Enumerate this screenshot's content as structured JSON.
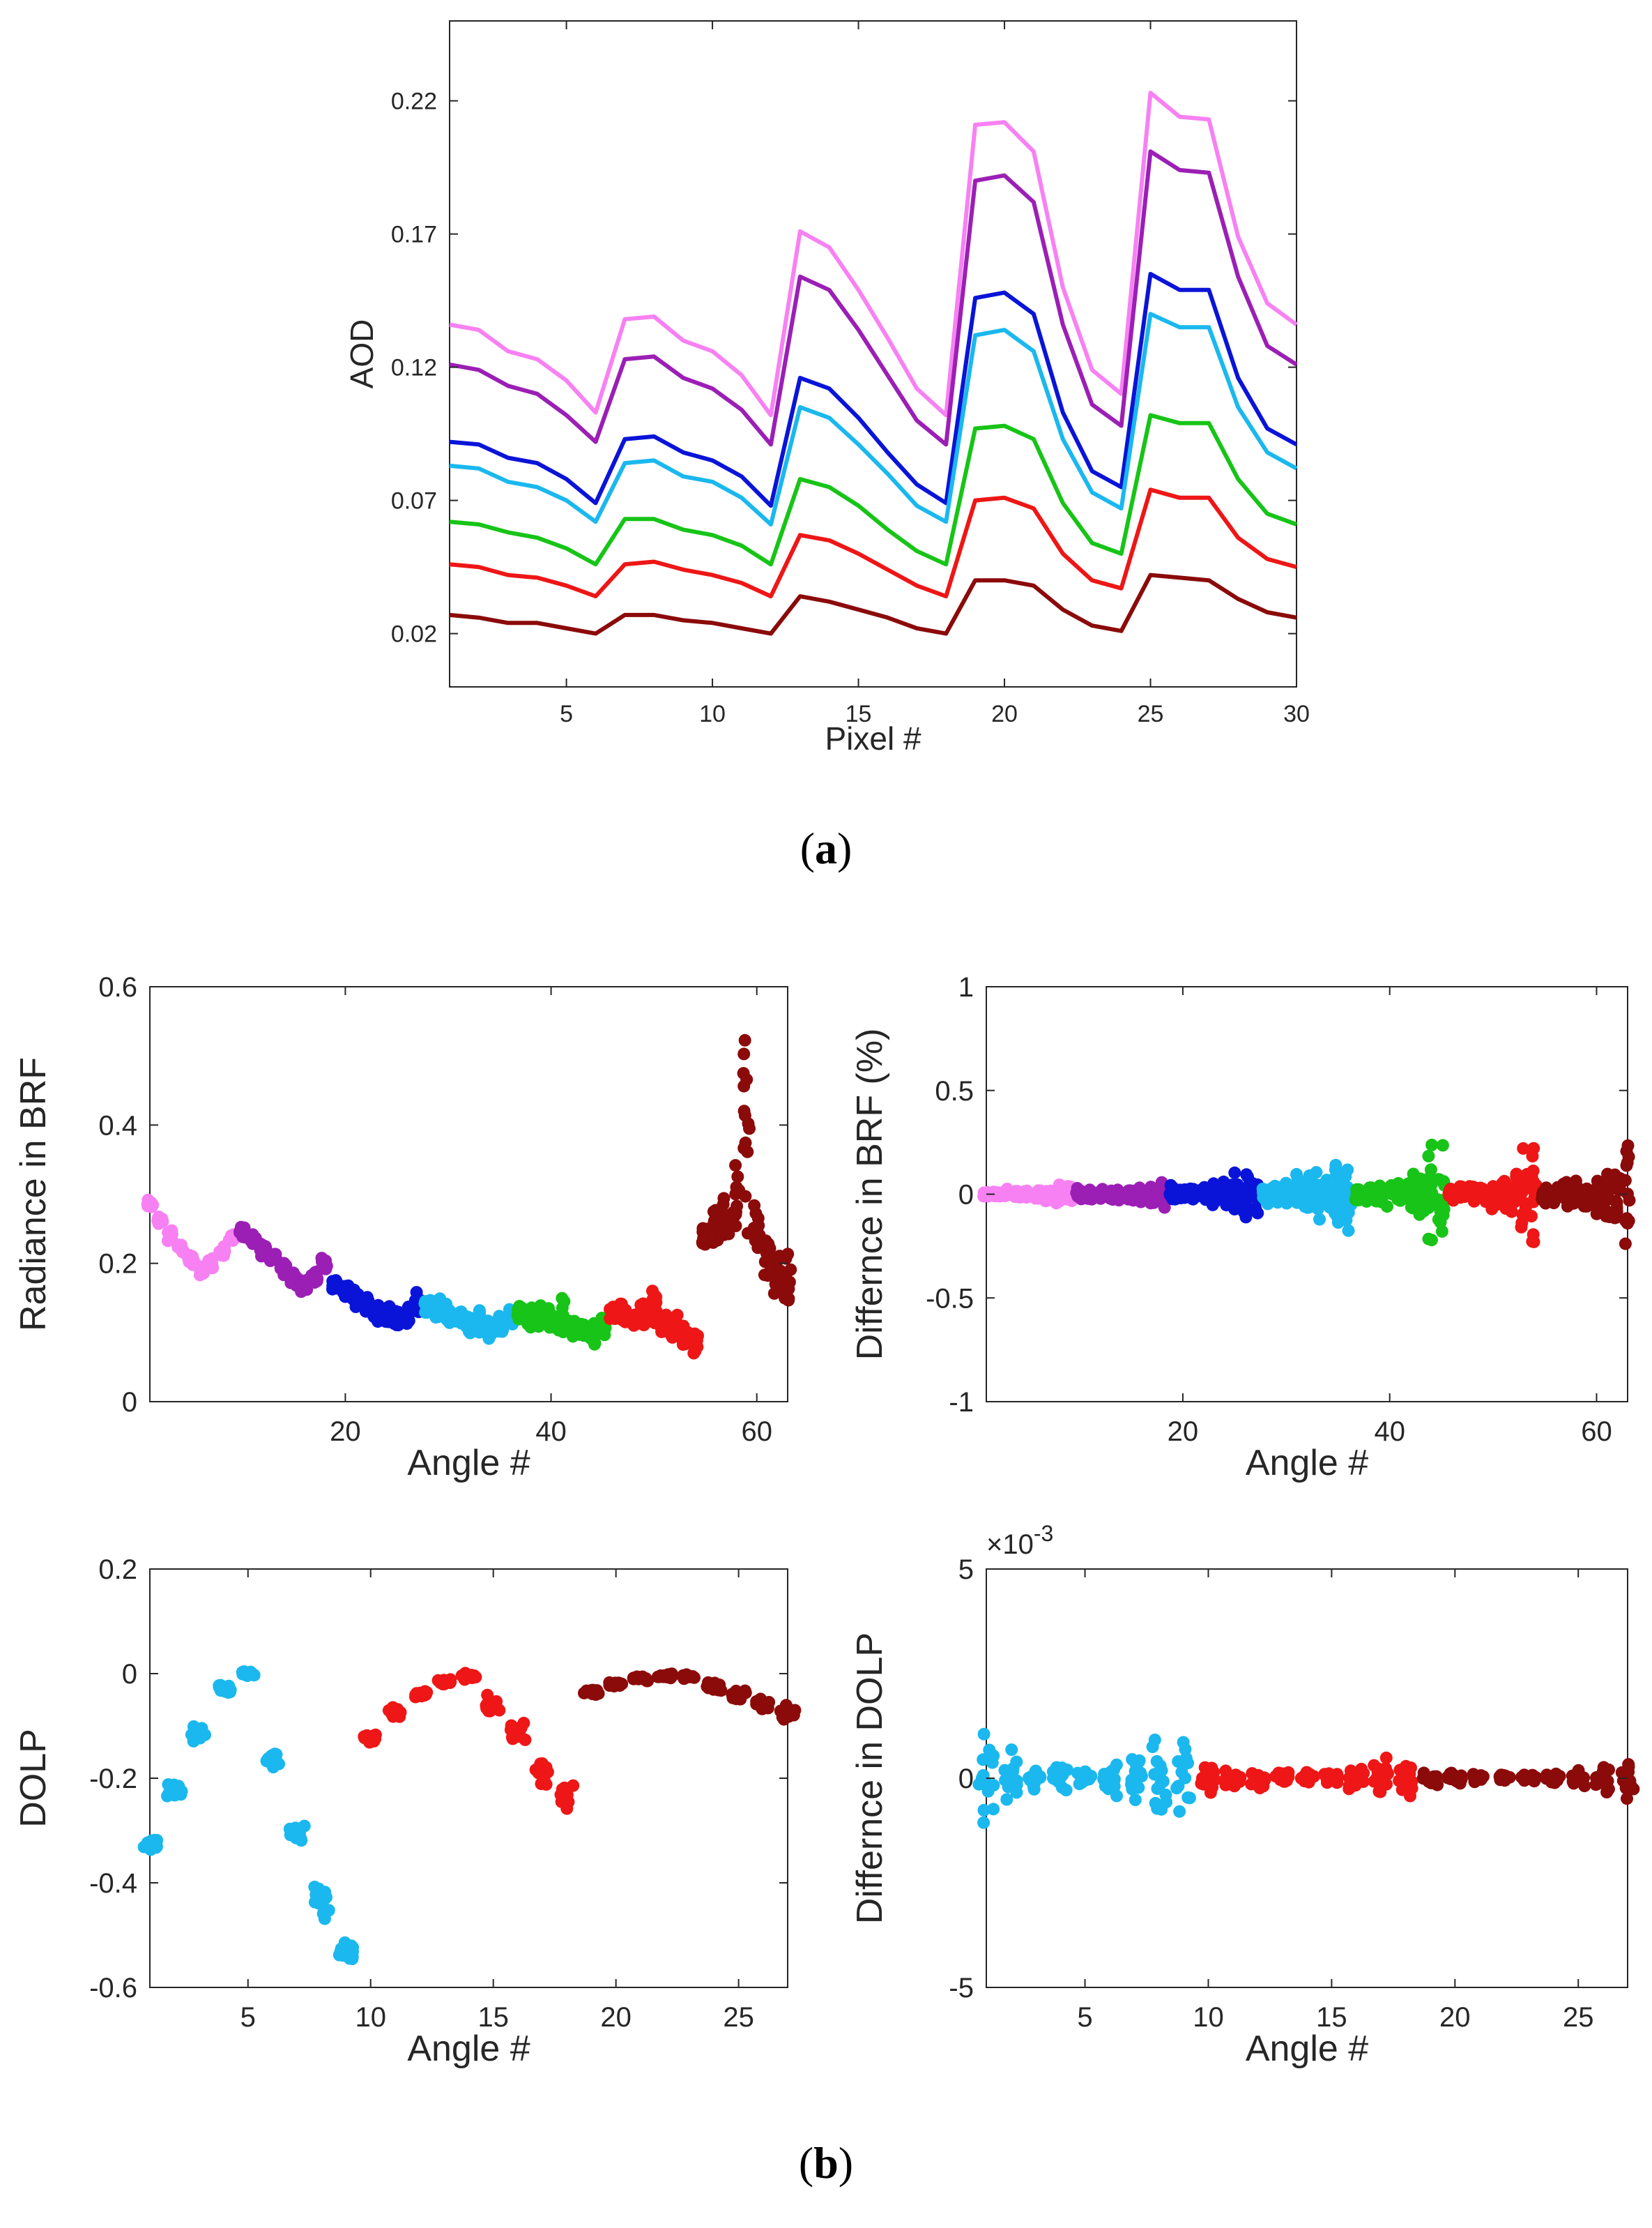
{
  "figure": {
    "label_a": "a",
    "label_b": "b",
    "paren_open": "(",
    "paren_close": ")"
  },
  "chart_data": [
    {
      "id": "aod",
      "type": "line",
      "title": "",
      "xlabel": "Pixel #",
      "ylabel": "AOD",
      "xlim": [
        1,
        30
      ],
      "ylim": [
        0.0,
        0.25
      ],
      "xticks": [
        5,
        10,
        15,
        20,
        25,
        30
      ],
      "yticks": [
        0.02,
        0.07,
        0.12,
        0.17,
        0.22
      ],
      "ytick_labels": [
        "0.02",
        "0.07",
        "0.12",
        "0.17",
        "0.22"
      ],
      "x": [
        1,
        2,
        3,
        4,
        5,
        6,
        7,
        8,
        9,
        10,
        11,
        12,
        13,
        14,
        15,
        16,
        17,
        18,
        19,
        20,
        21,
        22,
        23,
        24,
        25,
        26,
        27,
        28,
        29,
        30
      ],
      "series": [
        {
          "name": "violet",
          "color": "#f781f3",
          "values": [
            0.136,
            0.134,
            0.126,
            0.123,
            0.115,
            0.103,
            0.138,
            0.139,
            0.13,
            0.126,
            0.117,
            0.102,
            0.171,
            0.165,
            0.149,
            0.131,
            0.112,
            0.102,
            0.211,
            0.212,
            0.201,
            0.15,
            0.119,
            0.11,
            0.223,
            0.214,
            0.213,
            0.169,
            0.144,
            0.136
          ]
        },
        {
          "name": "purple",
          "color": "#9b1fb5",
          "values": [
            0.121,
            0.119,
            0.113,
            0.11,
            0.102,
            0.092,
            0.123,
            0.124,
            0.116,
            0.112,
            0.104,
            0.091,
            0.154,
            0.149,
            0.134,
            0.117,
            0.1,
            0.091,
            0.19,
            0.192,
            0.182,
            0.136,
            0.106,
            0.098,
            0.201,
            0.194,
            0.193,
            0.154,
            0.128,
            0.121
          ]
        },
        {
          "name": "blue",
          "color": "#0a14d8",
          "values": [
            0.092,
            0.091,
            0.086,
            0.084,
            0.078,
            0.069,
            0.093,
            0.094,
            0.088,
            0.085,
            0.079,
            0.068,
            0.116,
            0.112,
            0.101,
            0.088,
            0.076,
            0.069,
            0.146,
            0.148,
            0.14,
            0.103,
            0.081,
            0.075,
            0.155,
            0.149,
            0.149,
            0.116,
            0.097,
            0.091
          ]
        },
        {
          "name": "cyan",
          "color": "#1ab8ee",
          "values": [
            0.083,
            0.082,
            0.077,
            0.075,
            0.07,
            0.062,
            0.084,
            0.085,
            0.079,
            0.077,
            0.071,
            0.061,
            0.105,
            0.101,
            0.091,
            0.08,
            0.068,
            0.062,
            0.132,
            0.134,
            0.126,
            0.093,
            0.073,
            0.067,
            0.14,
            0.135,
            0.135,
            0.105,
            0.088,
            0.082
          ]
        },
        {
          "name": "green",
          "color": "#17c417",
          "values": [
            0.062,
            0.061,
            0.058,
            0.056,
            0.052,
            0.046,
            0.063,
            0.063,
            0.059,
            0.057,
            0.053,
            0.046,
            0.078,
            0.075,
            0.068,
            0.059,
            0.051,
            0.046,
            0.097,
            0.098,
            0.093,
            0.069,
            0.054,
            0.05,
            0.102,
            0.099,
            0.099,
            0.078,
            0.065,
            0.061
          ]
        },
        {
          "name": "red",
          "color": "#ee1616",
          "values": [
            0.046,
            0.045,
            0.042,
            0.041,
            0.038,
            0.034,
            0.046,
            0.047,
            0.044,
            0.042,
            0.039,
            0.034,
            0.057,
            0.055,
            0.05,
            0.044,
            0.038,
            0.034,
            0.07,
            0.071,
            0.067,
            0.05,
            0.04,
            0.037,
            0.074,
            0.071,
            0.071,
            0.056,
            0.048,
            0.045
          ]
        },
        {
          "name": "darkred",
          "color": "#8b0a0a",
          "values": [
            0.027,
            0.026,
            0.024,
            0.024,
            0.022,
            0.02,
            0.027,
            0.027,
            0.025,
            0.024,
            0.022,
            0.02,
            0.034,
            0.032,
            0.029,
            0.026,
            0.022,
            0.02,
            0.04,
            0.04,
            0.038,
            0.029,
            0.023,
            0.021,
            0.042,
            0.041,
            0.04,
            0.033,
            0.028,
            0.026
          ]
        }
      ]
    },
    {
      "id": "radiance",
      "type": "scatter",
      "title": "",
      "xlabel": "Angle #",
      "ylabel": "Radiance in BRF",
      "xlim": [
        1,
        63
      ],
      "ylim": [
        0,
        0.6
      ],
      "xticks": [
        20,
        40,
        60
      ],
      "yticks": [
        0,
        0.2,
        0.4,
        0.6
      ],
      "ytick_labels": [
        "0",
        "0.2",
        "0.4",
        "0.6"
      ],
      "series": [
        {
          "name": "violet",
          "color": "#f781f3",
          "x_range": [
            1,
            9
          ],
          "centers": [
            0.285,
            0.262,
            0.24,
            0.222,
            0.205,
            0.19,
            0.2,
            0.218,
            0.238
          ],
          "spread": [
            0.01,
            0.01,
            0.01,
            0.01,
            0.01,
            0.01,
            0.01,
            0.01,
            0.01
          ]
        },
        {
          "name": "purple",
          "color": "#9b1fb5",
          "x_range": [
            10,
            18
          ],
          "centers": [
            0.245,
            0.232,
            0.22,
            0.208,
            0.195,
            0.18,
            0.17,
            0.178,
            0.2
          ],
          "spread": [
            0.012,
            0.012,
            0.012,
            0.012,
            0.014,
            0.016,
            0.016,
            0.016,
            0.014
          ]
        },
        {
          "name": "blue",
          "color": "#0a14d8",
          "x_range": [
            19,
            27
          ],
          "centers": [
            0.17,
            0.16,
            0.15,
            0.14,
            0.132,
            0.125,
            0.118,
            0.125,
            0.145
          ],
          "spread": [
            0.012,
            0.015,
            0.015,
            0.018,
            0.02,
            0.02,
            0.02,
            0.02,
            0.02
          ]
        },
        {
          "name": "cyan",
          "color": "#1ab8ee",
          "x_range": [
            28,
            36
          ],
          "centers": [
            0.14,
            0.135,
            0.128,
            0.122,
            0.115,
            0.11,
            0.102,
            0.11,
            0.125
          ],
          "spread": [
            0.015,
            0.018,
            0.02,
            0.02,
            0.022,
            0.028,
            0.02,
            0.02,
            0.018
          ]
        },
        {
          "name": "green",
          "color": "#17c417",
          "x_range": [
            37,
            45
          ],
          "centers": [
            0.125,
            0.122,
            0.12,
            0.118,
            0.122,
            0.108,
            0.1,
            0.095,
            0.11
          ],
          "spread": [
            0.018,
            0.02,
            0.022,
            0.026,
            0.045,
            0.022,
            0.022,
            0.024,
            0.025
          ]
        },
        {
          "name": "red",
          "color": "#ee1616",
          "x_range": [
            46,
            54
          ],
          "centers": [
            0.125,
            0.125,
            0.12,
            0.122,
            0.13,
            0.115,
            0.105,
            0.095,
            0.085
          ],
          "spread": [
            0.018,
            0.022,
            0.025,
            0.03,
            0.045,
            0.03,
            0.03,
            0.03,
            0.025
          ]
        },
        {
          "name": "darkred",
          "color": "#8b0a0a",
          "x_range": [
            55,
            63
          ],
          "centers": [
            0.24,
            0.255,
            0.265,
            0.29,
            0.38,
            0.25,
            0.21,
            0.185,
            0.17
          ],
          "spread": [
            0.03,
            0.04,
            0.06,
            0.08,
            0.2,
            0.06,
            0.05,
            0.05,
            0.05
          ]
        }
      ]
    },
    {
      "id": "brf_diff",
      "type": "scatter",
      "title": "",
      "xlabel": "Angle #",
      "ylabel": "Differnce in BRF (%)",
      "xlim": [
        1,
        63
      ],
      "ylim": [
        -1,
        1
      ],
      "xticks": [
        20,
        40,
        60
      ],
      "yticks": [
        -1,
        -0.5,
        0,
        0.5,
        1
      ],
      "ytick_labels": [
        "-1",
        "-0.5",
        "0",
        "0.5",
        "1"
      ],
      "series": [
        {
          "name": "violet",
          "color": "#f781f3",
          "x_range": [
            1,
            9
          ],
          "centers": [
            0,
            0,
            0,
            0,
            0,
            0,
            0,
            0,
            0
          ],
          "spread": [
            0.03,
            0.03,
            0.03,
            0.03,
            0.03,
            0.04,
            0.05,
            0.06,
            0.06
          ]
        },
        {
          "name": "purple",
          "color": "#9b1fb5",
          "x_range": [
            10,
            18
          ],
          "centers": [
            0,
            0,
            0,
            0,
            0,
            0,
            0,
            0,
            0
          ],
          "spread": [
            0.04,
            0.04,
            0.04,
            0.04,
            0.05,
            0.06,
            0.07,
            0.08,
            0.09
          ]
        },
        {
          "name": "blue",
          "color": "#0a14d8",
          "x_range": [
            19,
            27
          ],
          "centers": [
            0,
            0,
            0,
            0,
            0,
            0,
            0,
            0,
            0
          ],
          "spread": [
            0.06,
            0.06,
            0.06,
            0.06,
            0.08,
            0.1,
            0.14,
            0.2,
            0.2
          ]
        },
        {
          "name": "cyan",
          "color": "#1ab8ee",
          "x_range": [
            28,
            36
          ],
          "centers": [
            0,
            0,
            0,
            0,
            0,
            0,
            0,
            0,
            0
          ],
          "spread": [
            0.06,
            0.08,
            0.1,
            0.12,
            0.12,
            0.14,
            0.2,
            0.28,
            0.28
          ]
        },
        {
          "name": "green",
          "color": "#17c417",
          "x_range": [
            37,
            45
          ],
          "centers": [
            0,
            0,
            0,
            0,
            0,
            0,
            0,
            0,
            0
          ],
          "spread": [
            0.06,
            0.06,
            0.08,
            0.08,
            0.1,
            0.12,
            0.14,
            0.3,
            0.3
          ]
        },
        {
          "name": "red",
          "color": "#ee1616",
          "x_range": [
            46,
            54
          ],
          "centers": [
            0,
            0,
            0,
            0,
            0,
            0,
            0,
            0,
            0
          ],
          "spread": [
            0.05,
            0.05,
            0.06,
            0.08,
            0.1,
            0.12,
            0.2,
            0.3,
            0.4
          ]
        },
        {
          "name": "darkred",
          "color": "#8b0a0a",
          "x_range": [
            55,
            63
          ],
          "centers": [
            0,
            0,
            0,
            0,
            0,
            0,
            0,
            0,
            0
          ],
          "spread": [
            0.05,
            0.06,
            0.08,
            0.1,
            0.12,
            0.14,
            0.2,
            0.3,
            0.45
          ]
        }
      ]
    },
    {
      "id": "dolp",
      "type": "scatter",
      "title": "",
      "xlabel": "Angle #",
      "ylabel": "DOLP",
      "xlim": [
        1,
        27
      ],
      "ylim": [
        -0.6,
        0.2
      ],
      "xticks": [
        5,
        10,
        15,
        20,
        25
      ],
      "yticks": [
        -0.6,
        -0.4,
        -0.2,
        0,
        0.2
      ],
      "ytick_labels": [
        "-0.6",
        "-0.4",
        "-0.2",
        "0",
        "0.2"
      ],
      "series": [
        {
          "name": "cyan",
          "color": "#1ab8ee",
          "x_range": [
            1,
            9
          ],
          "centers": [
            -0.325,
            -0.222,
            -0.115,
            -0.03,
            0.0,
            -0.165,
            -0.31,
            -0.44,
            -0.53
          ],
          "spread": [
            0.015,
            0.02,
            0.02,
            0.012,
            0.012,
            0.03,
            0.03,
            0.04,
            0.04
          ]
        },
        {
          "name": "red",
          "color": "#ee1616",
          "x_range": [
            10,
            18
          ],
          "centers": [
            -0.125,
            -0.075,
            -0.04,
            -0.015,
            -0.005,
            -0.06,
            -0.115,
            -0.19,
            -0.24
          ],
          "spread": [
            0.015,
            0.012,
            0.01,
            0.008,
            0.008,
            0.025,
            0.025,
            0.035,
            0.045
          ]
        },
        {
          "name": "darkred",
          "color": "#8b0a0a",
          "x_range": [
            19,
            27
          ],
          "centers": [
            -0.035,
            -0.02,
            -0.01,
            -0.005,
            -0.005,
            -0.025,
            -0.04,
            -0.055,
            -0.075
          ],
          "spread": [
            0.012,
            0.01,
            0.008,
            0.006,
            0.006,
            0.012,
            0.015,
            0.018,
            0.02
          ]
        }
      ]
    },
    {
      "id": "dolp_diff",
      "type": "scatter",
      "title": "",
      "xlabel": "Angle #",
      "ylabel": "Differnce in DOLP",
      "exponent_label": "×10",
      "exponent_power": "-3",
      "xlim": [
        1,
        27
      ],
      "ylim": [
        -5,
        5
      ],
      "xticks": [
        5,
        10,
        15,
        20,
        25
      ],
      "yticks": [
        -5,
        0,
        5
      ],
      "ytick_labels": [
        "-5",
        "0",
        "5"
      ],
      "series": [
        {
          "name": "cyan",
          "color": "#1ab8ee",
          "x_range": [
            1,
            9
          ],
          "centers": [
            0,
            0,
            0,
            0,
            0,
            0,
            0,
            0,
            0
          ],
          "spread": [
            1.5,
            1.1,
            0.6,
            0.5,
            0.4,
            0.6,
            1.2,
            1.7,
            1.9
          ]
        },
        {
          "name": "red",
          "color": "#ee1616",
          "x_range": [
            10,
            18
          ],
          "centers": [
            0,
            0,
            0,
            0,
            0,
            0,
            0,
            0,
            0
          ],
          "spread": [
            0.4,
            0.4,
            0.3,
            0.3,
            0.25,
            0.25,
            0.4,
            0.6,
            0.7
          ]
        },
        {
          "name": "darkred",
          "color": "#8b0a0a",
          "x_range": [
            19,
            27
          ],
          "centers": [
            0,
            0,
            0,
            0,
            0,
            0,
            0,
            0,
            0
          ],
          "spread": [
            0.3,
            0.2,
            0.15,
            0.15,
            0.15,
            0.2,
            0.3,
            0.5,
            0.6
          ]
        }
      ]
    }
  ]
}
